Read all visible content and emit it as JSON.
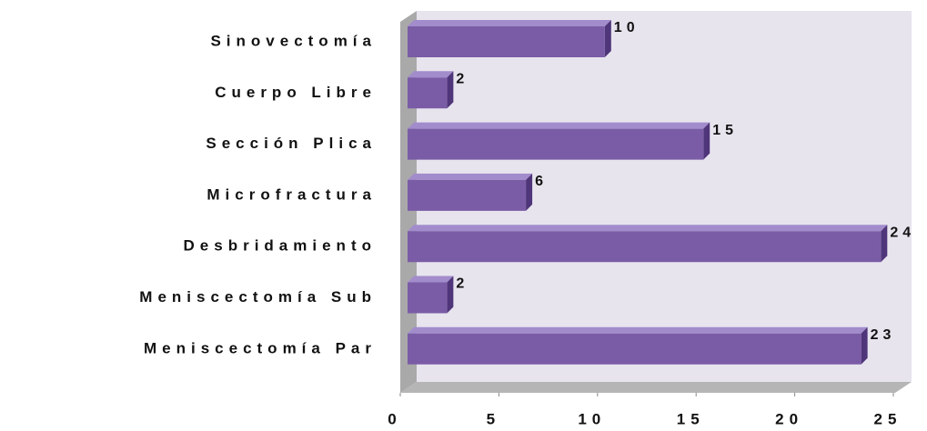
{
  "chart_data": {
    "type": "bar",
    "orientation": "horizontal",
    "categories": [
      "Sinovectomía",
      "Cuerpo Libre",
      "Sección Plica",
      "Microfractura",
      "Desbridamiento",
      "Meniscectomía Sub",
      "Meniscectomía Par"
    ],
    "values": [
      10,
      2,
      15,
      6,
      24,
      2,
      23
    ],
    "color": "#7a5ca6",
    "xlim": [
      0,
      25
    ],
    "xticks": [
      0,
      5,
      10,
      15,
      20,
      25
    ],
    "grid": false
  }
}
